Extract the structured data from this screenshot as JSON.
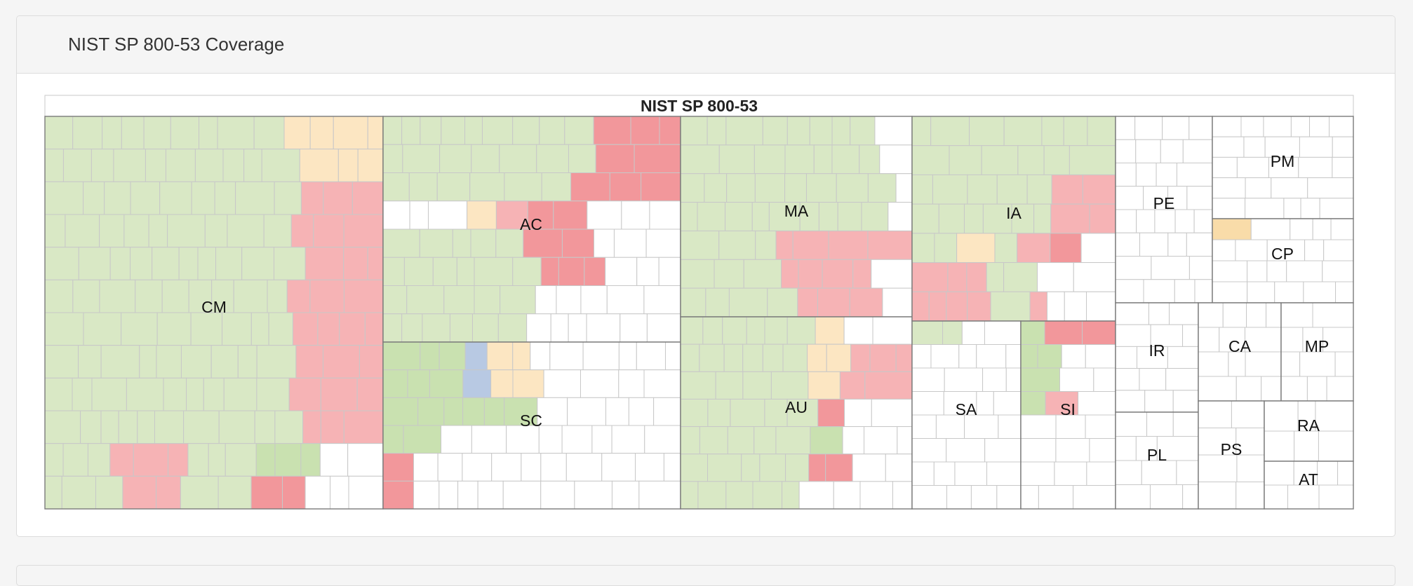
{
  "panel": {
    "title": "NIST SP 800-53 Coverage"
  },
  "colors": {
    "implemented": "#d9e8c5",
    "implemented_alt": "#c9e1b0",
    "partial": "#fce6c2",
    "partial_alt": "#f9dca9",
    "not_implemented": "#f6b3b5",
    "not_implemented_alt": "#f2979b",
    "planned": "#b8c9e3",
    "not_assessed": "#ffffff",
    "cell_border": "#c8c8c8",
    "family_border": "#7a7a7a"
  },
  "chart_data": {
    "type": "treemap",
    "title": "NIST SP 800-53",
    "families": [
      {
        "name": "CM",
        "controls": 131,
        "implemented": 0.62,
        "partially_implemented": 0.05,
        "not_implemented": 0.29,
        "not_assessed": 0.04
      },
      {
        "name": "AC",
        "controls": 77,
        "implemented": 0.38,
        "partially_implemented": 0.04,
        "not_implemented": 0.31,
        "not_assessed": 0.27
      },
      {
        "name": "SC",
        "controls": 66,
        "implemented": 0.2,
        "partially_implemented": 0.08,
        "not_implemented": 0.04,
        "planned": 0.02,
        "not_assessed": 0.66
      },
      {
        "name": "MA",
        "controls": 55,
        "implemented": 0.58,
        "partially_implemented": 0.0,
        "not_implemented": 0.34,
        "not_assessed": 0.08
      },
      {
        "name": "AU",
        "controls": 52,
        "implemented": 0.48,
        "partially_implemented": 0.1,
        "not_implemented": 0.16,
        "not_assessed": 0.26
      },
      {
        "name": "IA",
        "controls": 44,
        "implemented": 0.55,
        "partially_implemented": 0.03,
        "not_implemented": 0.26,
        "not_assessed": 0.16
      },
      {
        "name": "SA",
        "controls": 34,
        "implemented": 0.06,
        "partially_implemented": 0.0,
        "not_implemented": 0.0,
        "not_assessed": 0.94
      },
      {
        "name": "SI",
        "controls": 27,
        "implemented": 0.18,
        "partially_implemented": 0.0,
        "not_implemented": 0.22,
        "not_assessed": 0.6
      },
      {
        "name": "PE",
        "controls": 22,
        "not_assessed": 1.0
      },
      {
        "name": "PM",
        "controls": 16,
        "not_assessed": 1.0
      },
      {
        "name": "CP",
        "controls": 16,
        "partially_implemented": 0.04,
        "not_assessed": 0.96
      },
      {
        "name": "IR",
        "controls": 11,
        "not_assessed": 1.0
      },
      {
        "name": "CA",
        "controls": 9,
        "not_assessed": 1.0
      },
      {
        "name": "MP",
        "controls": 8,
        "not_assessed": 1.0
      },
      {
        "name": "PL",
        "controls": 10,
        "not_assessed": 1.0
      },
      {
        "name": "PS",
        "controls": 8,
        "not_assessed": 1.0
      },
      {
        "name": "RA",
        "controls": 6,
        "not_assessed": 1.0
      },
      {
        "name": "AT",
        "controls": 4,
        "not_assessed": 1.0
      }
    ]
  }
}
